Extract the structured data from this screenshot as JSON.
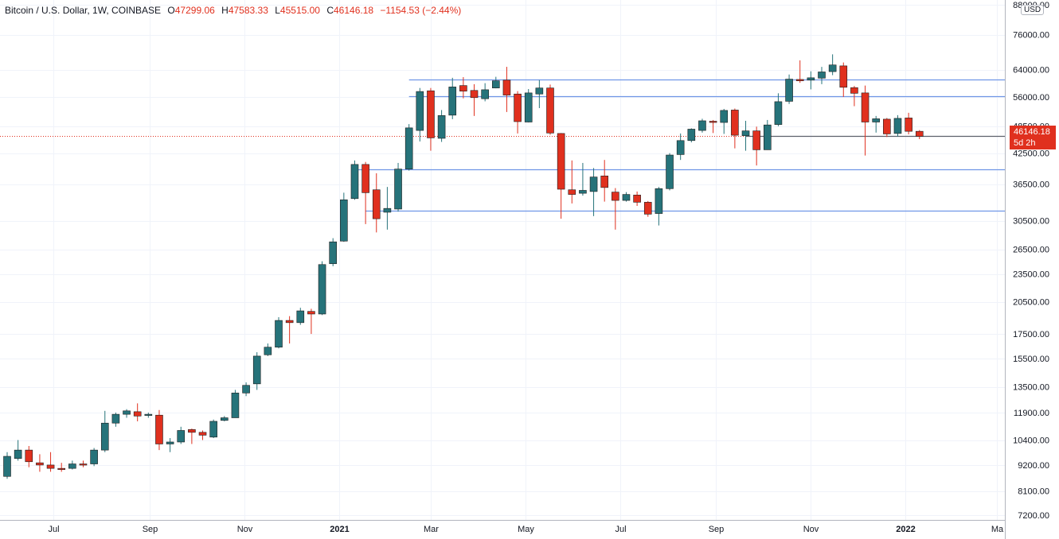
{
  "header": {
    "symbol": "Bitcoin / U.S. Dollar, 1W, COINBASE",
    "open_label": "O",
    "open": "47299.06",
    "high_label": "H",
    "high": "47583.33",
    "low_label": "L",
    "low": "45515.00",
    "close_label": "C",
    "close": "46146.18",
    "change": "−1154.53 (−2.44%)"
  },
  "currency_button": "USD",
  "last_price": {
    "value": "46146.18",
    "countdown": "5d 2h"
  },
  "colors": {
    "up": "#26737a",
    "down": "#e0301e",
    "grid": "#f0f3fa",
    "hline": "#6f96e6",
    "axis_text": "#131722"
  },
  "chart_data": {
    "type": "candlestick",
    "title": "Bitcoin / U.S. Dollar, 1W, COINBASE",
    "price_scale": "log",
    "yticks": [
      7200,
      8100,
      9200,
      10400,
      11900,
      13500,
      15500,
      17500,
      20500,
      23500,
      26500,
      30500,
      36500,
      42500,
      48500,
      56000,
      64000,
      76000,
      88000
    ],
    "ytick_labels": [
      "7200.00",
      "8100.00",
      "9200.00",
      "10400.00",
      "11900.00",
      "13500.00",
      "15500.00",
      "17500.00",
      "20500.00",
      "23500.00",
      "26500.00",
      "30500.00",
      "36500.00",
      "42500.00",
      "48500.00",
      "56000.00",
      "64000.00",
      "76000.00",
      "88000.00"
    ],
    "xticks": [
      {
        "label": "Jul",
        "date": "2020-07-01"
      },
      {
        "label": "Sep",
        "date": "2020-09-01"
      },
      {
        "label": "Nov",
        "date": "2020-11-01"
      },
      {
        "label": "2021",
        "date": "2021-01-01",
        "bold": true
      },
      {
        "label": "Mar",
        "date": "2021-03-01"
      },
      {
        "label": "May",
        "date": "2021-05-01"
      },
      {
        "label": "Jul",
        "date": "2021-07-01"
      },
      {
        "label": "Sep",
        "date": "2021-09-01"
      },
      {
        "label": "Nov",
        "date": "2021-11-01"
      },
      {
        "label": "2022",
        "date": "2022-01-01",
        "bold": true
      },
      {
        "label": "Ma",
        "date": "2022-03-01"
      }
    ],
    "horizontal_levels": [
      {
        "value": 61000,
        "from": "2021-02-15"
      },
      {
        "value": 56300,
        "from": "2021-02-15"
      },
      {
        "value": 39200,
        "from": "2021-01-11"
      },
      {
        "value": 32000,
        "from": "2021-01-18"
      }
    ],
    "support_line": {
      "value": 46146.18,
      "from": "2021-09-20"
    },
    "candles": [
      {
        "date": "2020-06-01",
        "o": 8700,
        "h": 9800,
        "l": 8600,
        "c": 9600
      },
      {
        "date": "2020-06-08",
        "o": 9500,
        "h": 10400,
        "l": 9400,
        "c": 9900
      },
      {
        "date": "2020-06-15",
        "o": 9900,
        "h": 10100,
        "l": 9100,
        "c": 9350
      },
      {
        "date": "2020-06-22",
        "o": 9300,
        "h": 9700,
        "l": 8900,
        "c": 9200
      },
      {
        "date": "2020-06-29",
        "o": 9200,
        "h": 9800,
        "l": 8900,
        "c": 9050
      },
      {
        "date": "2020-07-06",
        "o": 9050,
        "h": 9300,
        "l": 8900,
        "c": 9000
      },
      {
        "date": "2020-07-13",
        "o": 9050,
        "h": 9400,
        "l": 9000,
        "c": 9250
      },
      {
        "date": "2020-07-20",
        "o": 9250,
        "h": 9400,
        "l": 9100,
        "c": 9200
      },
      {
        "date": "2020-07-27",
        "o": 9250,
        "h": 10000,
        "l": 9150,
        "c": 9900
      },
      {
        "date": "2020-08-03",
        "o": 9900,
        "h": 12000,
        "l": 9800,
        "c": 11300
      },
      {
        "date": "2020-08-10",
        "o": 11300,
        "h": 11900,
        "l": 11100,
        "c": 11800
      },
      {
        "date": "2020-08-17",
        "o": 11800,
        "h": 12100,
        "l": 11600,
        "c": 12000
      },
      {
        "date": "2020-08-24",
        "o": 11950,
        "h": 12450,
        "l": 11400,
        "c": 11700
      },
      {
        "date": "2020-08-31",
        "o": 11750,
        "h": 11900,
        "l": 11600,
        "c": 11800
      },
      {
        "date": "2020-09-07",
        "o": 11750,
        "h": 12050,
        "l": 9900,
        "c": 10200
      },
      {
        "date": "2020-09-14",
        "o": 10200,
        "h": 10500,
        "l": 9800,
        "c": 10300
      },
      {
        "date": "2020-09-21",
        "o": 10300,
        "h": 11100,
        "l": 10200,
        "c": 10900
      },
      {
        "date": "2020-09-28",
        "o": 10950,
        "h": 11000,
        "l": 10200,
        "c": 10800
      },
      {
        "date": "2020-10-05",
        "o": 10800,
        "h": 10900,
        "l": 10400,
        "c": 10650
      },
      {
        "date": "2020-10-12",
        "o": 10550,
        "h": 11500,
        "l": 10500,
        "c": 11400
      },
      {
        "date": "2020-10-19",
        "o": 11450,
        "h": 11700,
        "l": 11400,
        "c": 11600
      },
      {
        "date": "2020-10-26",
        "o": 11600,
        "h": 13300,
        "l": 11600,
        "c": 13100
      },
      {
        "date": "2020-11-02",
        "o": 13100,
        "h": 13800,
        "l": 12900,
        "c": 13600
      },
      {
        "date": "2020-11-09",
        "o": 13700,
        "h": 16000,
        "l": 13300,
        "c": 15700
      },
      {
        "date": "2020-11-16",
        "o": 15800,
        "h": 16700,
        "l": 15700,
        "c": 16400
      },
      {
        "date": "2020-11-23",
        "o": 16400,
        "h": 19000,
        "l": 16300,
        "c": 18700
      },
      {
        "date": "2020-11-30",
        "o": 18700,
        "h": 19100,
        "l": 16700,
        "c": 18500
      },
      {
        "date": "2020-12-07",
        "o": 18500,
        "h": 19900,
        "l": 18300,
        "c": 19600
      },
      {
        "date": "2020-12-14",
        "o": 19550,
        "h": 19800,
        "l": 17500,
        "c": 19300
      },
      {
        "date": "2020-12-21",
        "o": 19300,
        "h": 25000,
        "l": 19200,
        "c": 24600
      },
      {
        "date": "2020-12-28",
        "o": 24700,
        "h": 28000,
        "l": 24400,
        "c": 27500
      },
      {
        "date": "2021-01-04",
        "o": 27600,
        "h": 35000,
        "l": 27500,
        "c": 33800
      },
      {
        "date": "2021-01-11",
        "o": 34000,
        "h": 41000,
        "l": 33800,
        "c": 40200
      },
      {
        "date": "2021-01-18",
        "o": 40200,
        "h": 40700,
        "l": 30000,
        "c": 35000
      },
      {
        "date": "2021-01-25",
        "o": 35500,
        "h": 38500,
        "l": 28800,
        "c": 30800
      },
      {
        "date": "2021-02-01",
        "o": 31800,
        "h": 36000,
        "l": 29200,
        "c": 32400
      },
      {
        "date": "2021-02-08",
        "o": 32300,
        "h": 40500,
        "l": 31900,
        "c": 39300
      },
      {
        "date": "2021-02-15",
        "o": 39300,
        "h": 49000,
        "l": 39000,
        "c": 48100
      },
      {
        "date": "2021-02-22",
        "o": 47500,
        "h": 58500,
        "l": 45000,
        "c": 57500
      },
      {
        "date": "2021-03-01",
        "o": 57700,
        "h": 58500,
        "l": 43000,
        "c": 45800
      },
      {
        "date": "2021-03-08",
        "o": 45700,
        "h": 52500,
        "l": 44900,
        "c": 51100
      },
      {
        "date": "2021-03-15",
        "o": 51200,
        "h": 61500,
        "l": 50200,
        "c": 58800
      },
      {
        "date": "2021-03-22",
        "o": 59200,
        "h": 61700,
        "l": 55600,
        "c": 57600
      },
      {
        "date": "2021-03-29",
        "o": 57800,
        "h": 59600,
        "l": 51000,
        "c": 55800
      },
      {
        "date": "2021-04-05",
        "o": 55500,
        "h": 59900,
        "l": 54800,
        "c": 58000
      },
      {
        "date": "2021-04-12",
        "o": 58500,
        "h": 61800,
        "l": 58400,
        "c": 60600
      },
      {
        "date": "2021-04-19",
        "o": 60800,
        "h": 64900,
        "l": 52000,
        "c": 56500
      },
      {
        "date": "2021-04-26",
        "o": 56800,
        "h": 57600,
        "l": 46800,
        "c": 49600
      },
      {
        "date": "2021-05-03",
        "o": 49500,
        "h": 58200,
        "l": 49400,
        "c": 57100
      },
      {
        "date": "2021-05-10",
        "o": 56800,
        "h": 60800,
        "l": 53000,
        "c": 58500
      },
      {
        "date": "2021-05-17",
        "o": 58500,
        "h": 59500,
        "l": 46500,
        "c": 46900
      },
      {
        "date": "2021-05-24",
        "o": 46800,
        "h": 46900,
        "l": 30800,
        "c": 35600
      },
      {
        "date": "2021-05-31",
        "o": 35500,
        "h": 41000,
        "l": 33200,
        "c": 34700
      },
      {
        "date": "2021-06-07",
        "o": 34900,
        "h": 40500,
        "l": 34500,
        "c": 35400
      },
      {
        "date": "2021-06-14",
        "o": 35200,
        "h": 39500,
        "l": 31200,
        "c": 37800
      },
      {
        "date": "2021-06-21",
        "o": 38000,
        "h": 41100,
        "l": 33500,
        "c": 35900
      },
      {
        "date": "2021-06-28",
        "o": 35100,
        "h": 35800,
        "l": 29200,
        "c": 33700
      },
      {
        "date": "2021-07-05",
        "o": 33700,
        "h": 35100,
        "l": 33500,
        "c": 34700
      },
      {
        "date": "2021-07-12",
        "o": 34600,
        "h": 35200,
        "l": 32800,
        "c": 33400
      },
      {
        "date": "2021-07-19",
        "o": 33400,
        "h": 33600,
        "l": 31100,
        "c": 31500
      },
      {
        "date": "2021-07-26",
        "o": 31600,
        "h": 36000,
        "l": 29800,
        "c": 35700
      },
      {
        "date": "2021-08-02",
        "o": 35700,
        "h": 42500,
        "l": 35400,
        "c": 42100
      },
      {
        "date": "2021-08-09",
        "o": 42200,
        "h": 46800,
        "l": 41100,
        "c": 45200
      },
      {
        "date": "2021-08-16",
        "o": 45200,
        "h": 48000,
        "l": 44800,
        "c": 47800
      },
      {
        "date": "2021-08-23",
        "o": 47500,
        "h": 50300,
        "l": 47000,
        "c": 49800
      },
      {
        "date": "2021-08-30",
        "o": 49700,
        "h": 50000,
        "l": 46900,
        "c": 49400
      },
      {
        "date": "2021-09-06",
        "o": 49400,
        "h": 52800,
        "l": 46700,
        "c": 52400
      },
      {
        "date": "2021-09-13",
        "o": 52500,
        "h": 52900,
        "l": 43500,
        "c": 46400
      },
      {
        "date": "2021-09-20",
        "o": 46300,
        "h": 49800,
        "l": 43000,
        "c": 47400
      },
      {
        "date": "2021-09-27",
        "o": 47400,
        "h": 48400,
        "l": 40000,
        "c": 43200
      },
      {
        "date": "2021-10-04",
        "o": 43200,
        "h": 50000,
        "l": 43200,
        "c": 48800
      },
      {
        "date": "2021-10-11",
        "o": 48900,
        "h": 57000,
        "l": 48500,
        "c": 54700
      },
      {
        "date": "2021-10-18",
        "o": 54800,
        "h": 62500,
        "l": 54100,
        "c": 61100
      },
      {
        "date": "2021-10-25",
        "o": 61000,
        "h": 67000,
        "l": 60000,
        "c": 60600
      },
      {
        "date": "2021-11-01",
        "o": 60800,
        "h": 63500,
        "l": 58100,
        "c": 61500
      },
      {
        "date": "2021-11-08",
        "o": 61400,
        "h": 64900,
        "l": 59600,
        "c": 63300
      },
      {
        "date": "2021-11-15",
        "o": 63400,
        "h": 69000,
        "l": 62300,
        "c": 65500
      },
      {
        "date": "2021-11-22",
        "o": 65200,
        "h": 66300,
        "l": 56000,
        "c": 58700
      },
      {
        "date": "2021-11-29",
        "o": 58600,
        "h": 59100,
        "l": 53500,
        "c": 57000
      },
      {
        "date": "2021-12-06",
        "o": 57100,
        "h": 59200,
        "l": 42000,
        "c": 49500
      },
      {
        "date": "2021-12-13",
        "o": 49500,
        "h": 51000,
        "l": 47000,
        "c": 50300
      },
      {
        "date": "2021-12-20",
        "o": 50200,
        "h": 50500,
        "l": 46000,
        "c": 46700
      },
      {
        "date": "2021-12-27",
        "o": 46800,
        "h": 51200,
        "l": 46100,
        "c": 50400
      },
      {
        "date": "2022-01-03",
        "o": 50500,
        "h": 51800,
        "l": 46600,
        "c": 47299
      },
      {
        "date": "2022-01-10",
        "o": 47299.06,
        "h": 47583.33,
        "l": 45515,
        "c": 46146.18
      }
    ]
  }
}
